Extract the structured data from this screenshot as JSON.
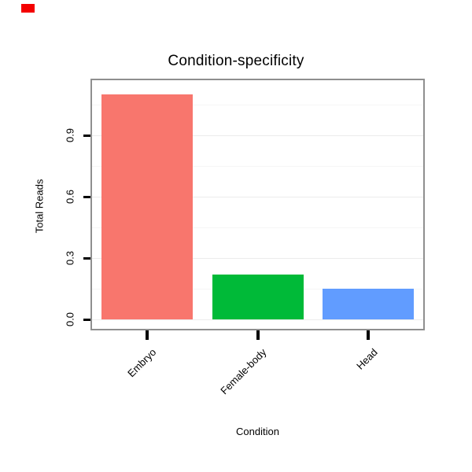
{
  "chart_data": {
    "type": "bar",
    "title": "Condition-specificity",
    "xlabel": "Condition",
    "ylabel": "Total Reads",
    "categories": [
      "Embryo",
      "Female-body",
      "Head"
    ],
    "values": [
      1.1,
      0.22,
      0.15
    ],
    "bar_colors": [
      "#F8766D",
      "#00BA38",
      "#619CFF"
    ],
    "ytick_values": [
      0,
      0.3,
      0.6,
      0.9
    ],
    "ytick_labels": [
      "0.0",
      "0.3",
      "0.6",
      "0.9"
    ],
    "minor_grid_values": [
      0.15,
      0.45,
      0.75,
      1.05
    ],
    "ylim": [
      0,
      1.17
    ],
    "legend": "none",
    "grid": "horizontal-faint"
  },
  "decor": {
    "corner_marker_color": "#f40000"
  }
}
